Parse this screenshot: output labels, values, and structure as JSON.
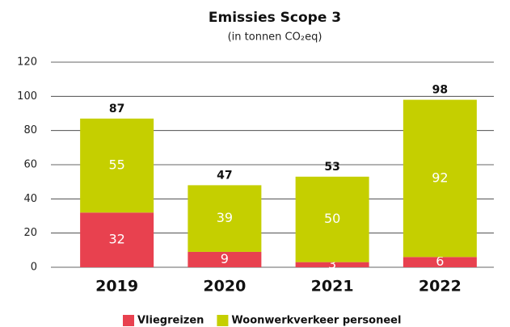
{
  "chart_data": {
    "type": "stacked_bar",
    "title": "Emissies Scope 3",
    "subtitle": "(in tonnen CO₂eq)",
    "categories": [
      "2019",
      "2020",
      "2021",
      "2022"
    ],
    "series": [
      {
        "name": "Vliegreizen",
        "color": "#e8414f",
        "values": [
          32,
          9,
          3,
          6
        ]
      },
      {
        "name": "Woonwerkverkeer personeel",
        "color": "#c5cf00",
        "values": [
          55,
          39,
          50,
          92
        ]
      }
    ],
    "totals": [
      87,
      47,
      53,
      98
    ],
    "ylim": [
      0,
      120
    ],
    "yticks": [
      0,
      20,
      40,
      60,
      80,
      100,
      120
    ],
    "grid": true,
    "legend": "bottom"
  }
}
